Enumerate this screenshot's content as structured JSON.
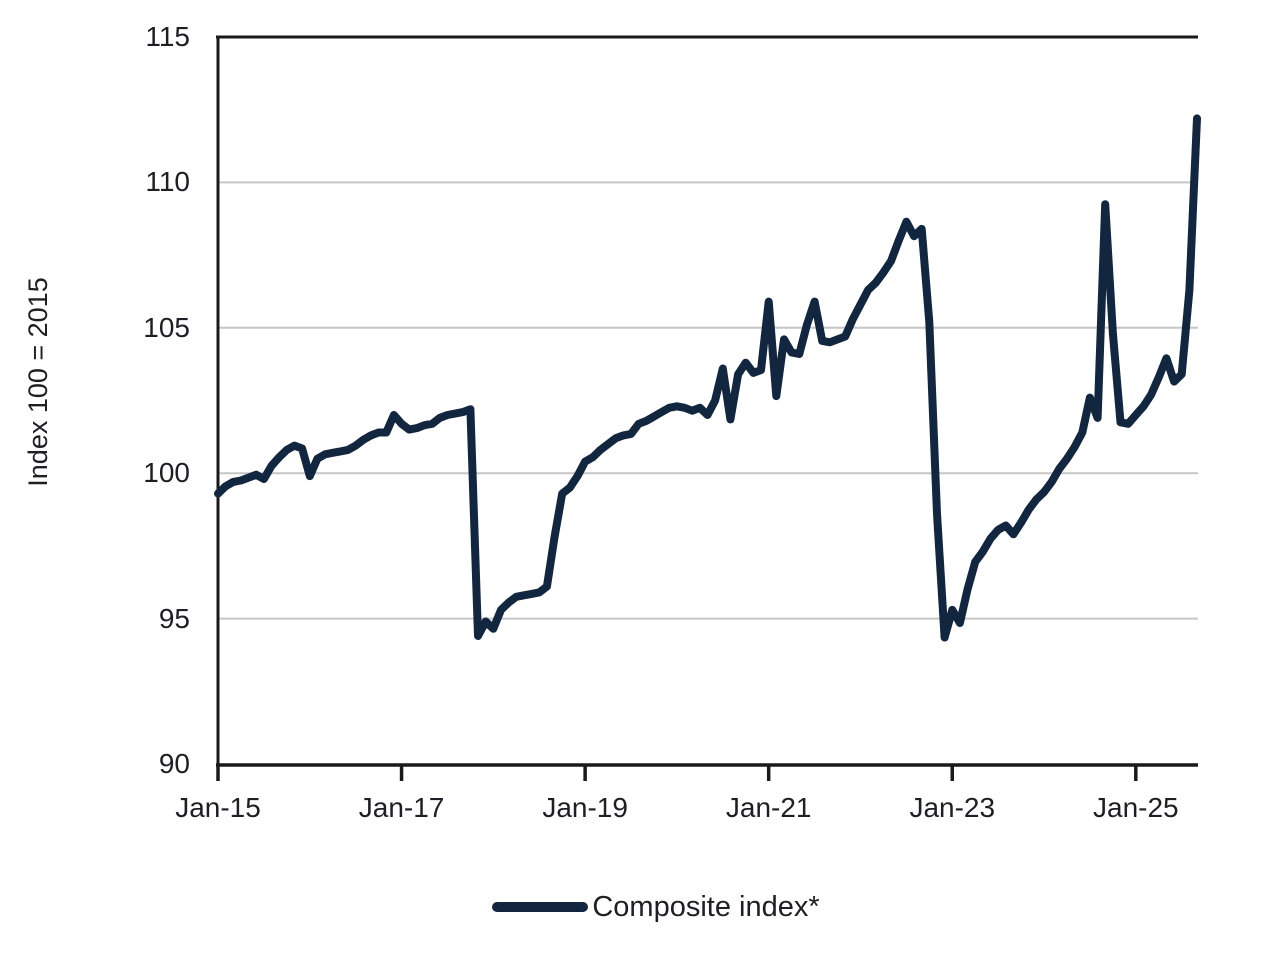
{
  "chart_data": {
    "type": "line",
    "title": "",
    "xlabel": "",
    "ylabel": "Index 100 = 2015",
    "ylim": [
      90,
      115
    ],
    "yticks": [
      90,
      95,
      100,
      105,
      110,
      115
    ],
    "ytick_labels": [
      "90",
      "95",
      "100",
      "105",
      "110",
      "115"
    ],
    "xtick_labels": [
      "Jan-15",
      "Jan-17",
      "Jan-19",
      "Jan-21",
      "Jan-23",
      "Jan-25"
    ],
    "xtick_month_index": [
      0,
      24,
      48,
      72,
      96,
      120
    ],
    "grid": "horizontal-gridlines-on",
    "legend": {
      "position": "bottom-center",
      "entries": [
        "Composite index*"
      ]
    },
    "series": [
      {
        "name": "Composite index*",
        "x_start": "2015-01",
        "x_end": "2025-09",
        "frequency": "monthly",
        "values": [
          99.3,
          99.55,
          99.7,
          99.75,
          99.85,
          99.95,
          99.8,
          100.25,
          100.55,
          100.8,
          100.95,
          100.85,
          99.9,
          100.5,
          100.65,
          100.7,
          100.75,
          100.8,
          100.95,
          101.15,
          101.3,
          101.4,
          101.4,
          102.0,
          101.7,
          101.5,
          101.55,
          101.65,
          101.7,
          101.9,
          102.0,
          102.05,
          102.1,
          102.2,
          94.4,
          94.9,
          94.65,
          95.3,
          95.55,
          95.75,
          95.8,
          95.85,
          95.9,
          96.1,
          97.8,
          99.3,
          99.5,
          99.9,
          100.4,
          100.55,
          100.8,
          101.0,
          101.2,
          101.3,
          101.35,
          101.7,
          101.8,
          101.95,
          102.1,
          102.25,
          102.3,
          102.25,
          102.15,
          102.25,
          102.0,
          102.5,
          103.6,
          101.85,
          103.4,
          103.8,
          103.45,
          103.55,
          105.9,
          102.65,
          104.6,
          104.15,
          104.1,
          105.1,
          105.9,
          104.55,
          104.5,
          104.6,
          104.7,
          105.3,
          105.8,
          106.3,
          106.55,
          106.9,
          107.3,
          108.0,
          108.65,
          108.15,
          108.4,
          105.2,
          98.6,
          94.35,
          95.3,
          94.85,
          96.0,
          96.95,
          97.3,
          97.75,
          98.05,
          98.2,
          97.9,
          98.3,
          98.75,
          99.1,
          99.35,
          99.7,
          100.15,
          100.5,
          100.9,
          101.4,
          102.6,
          101.9,
          109.25,
          104.8,
          101.75,
          101.7,
          102.0,
          102.3,
          102.7,
          103.3,
          103.95,
          103.15,
          103.4,
          106.3,
          112.2
        ]
      }
    ]
  },
  "colors": {
    "line": "#13263F",
    "gridline": "#c6c6c6",
    "axis": "#1a1a1a",
    "text": "#1e1e24",
    "background": "#ffffff"
  }
}
